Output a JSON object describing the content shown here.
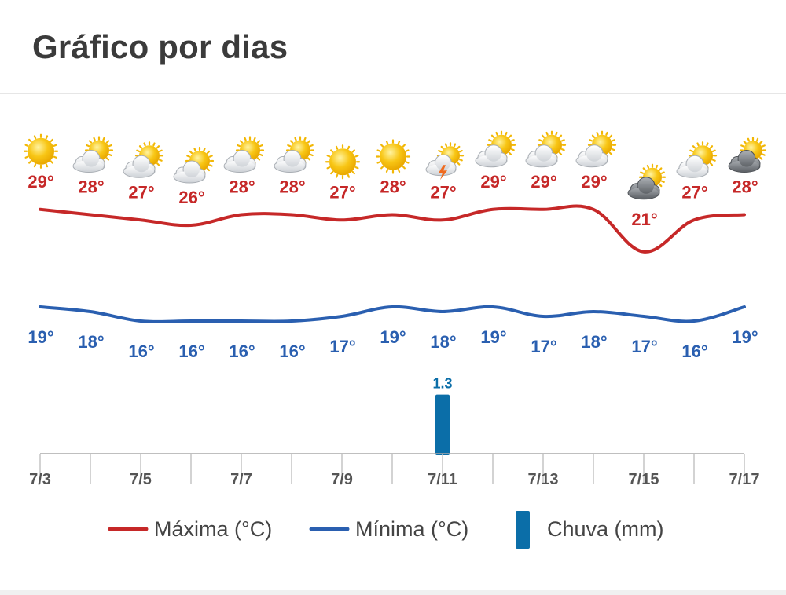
{
  "header": {
    "title": "Gráfico por dias"
  },
  "colors": {
    "max": "#c62828",
    "min": "#2a5fb0",
    "rain": "#0b6ea8",
    "axis": "#aaaaaa",
    "tick_label": "#555555"
  },
  "chart_data": {
    "type": "line",
    "title": "Gráfico por dias",
    "x": [
      "7/3",
      "7/4",
      "7/5",
      "7/6",
      "7/7",
      "7/8",
      "7/9",
      "7/10",
      "7/11",
      "7/12",
      "7/13",
      "7/14",
      "7/15",
      "7/16",
      "7/17"
    ],
    "x_tick_labels": [
      "7/3",
      "7/5",
      "7/7",
      "7/9",
      "7/11",
      "7/13",
      "7/15",
      "7/17"
    ],
    "series": [
      {
        "name": "Máxima (°C)",
        "type": "line",
        "values": [
          29,
          28,
          27,
          26,
          28,
          28,
          27,
          28,
          27,
          29,
          29,
          29,
          21,
          27,
          28
        ]
      },
      {
        "name": "Mínima (°C)",
        "type": "line",
        "values": [
          19,
          18,
          16,
          16,
          16,
          16,
          17,
          19,
          18,
          19,
          17,
          18,
          17,
          16,
          19
        ]
      },
      {
        "name": "Chuva (mm)",
        "type": "bar",
        "values": [
          0,
          0,
          0,
          0,
          0,
          0,
          0,
          0,
          1.3,
          0,
          0,
          0,
          0,
          0,
          0
        ]
      }
    ],
    "max_labels": [
      "29°",
      "28°",
      "27°",
      "26°",
      "28°",
      "28°",
      "27°",
      "28°",
      "27°",
      "29°",
      "29°",
      "29°",
      "21°",
      "27°",
      "28°"
    ],
    "min_labels": [
      "19°",
      "18°",
      "16°",
      "16°",
      "16°",
      "16°",
      "17°",
      "19°",
      "18°",
      "19°",
      "17°",
      "18°",
      "17°",
      "16°",
      "19°"
    ],
    "rain_labels": [
      "",
      "",
      "",
      "",
      "",
      "",
      "",
      "",
      "1.3",
      "",
      "",
      "",
      "",
      "",
      ""
    ],
    "weather_icons": [
      "sun",
      "partly-cloudy",
      "partly-cloudy",
      "partly-cloudy",
      "partly-cloudy",
      "partly-cloudy",
      "sun",
      "sun",
      "thunderstorm",
      "partly-cloudy",
      "partly-cloudy",
      "partly-cloudy",
      "cloudy",
      "partly-cloudy",
      "cloudy"
    ],
    "legend": {
      "position": "bottom",
      "items": [
        "Máxima (°C)",
        "Mínima (°C)",
        "Chuva (mm)"
      ]
    },
    "grid": false
  }
}
